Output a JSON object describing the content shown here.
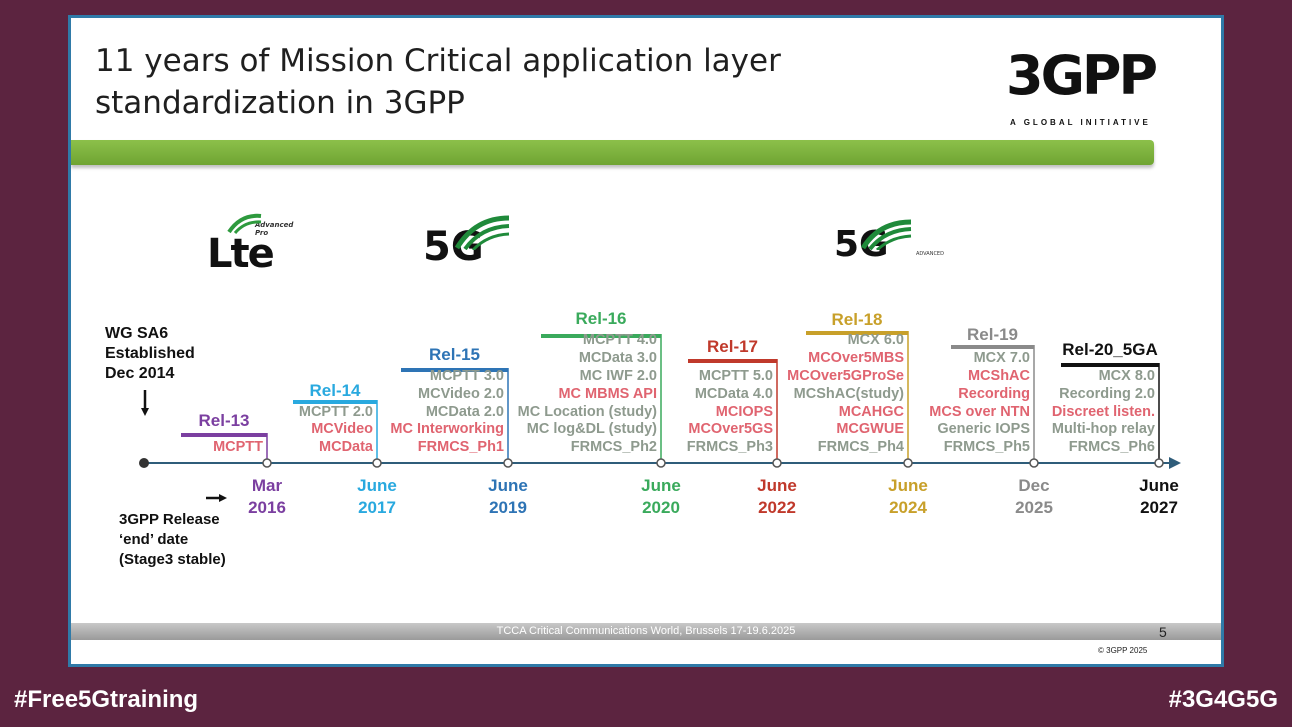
{
  "slide": {
    "title_line1": "11 years of Mission Critical application layer",
    "title_line2": "standardization in 3GPP",
    "logo_mark": "3GPP",
    "logo_tag": "A GLOBAL INITIATIVE",
    "lte_logo": "Lte",
    "lte_sub": "Advanced Pro",
    "g5_logo": "5G",
    "g5a_logo": "5G",
    "g5a_sub": "ADVANCED",
    "sa6_line1": "WG SA6",
    "sa6_line2": "Established",
    "sa6_line3": "Dec 2014",
    "note_line1": "3GPP Release",
    "note_line2": "‘end’ date",
    "note_line3": "(Stage3 stable)",
    "footer": "TCCA Critical Communications World, Brussels 17-19.6.2025",
    "page_number": "5",
    "copyright": "© 3GPP 2025"
  },
  "colors": {
    "rel13": "#7b3fa0",
    "rel14": "#29a9df",
    "rel15": "#2e74b5",
    "rel16": "#3aaa5c",
    "rel17": "#c0392b",
    "rel18": "#c8a02a",
    "rel19": "#8a8a8a",
    "rel20": "#111111",
    "existing_item": "#8e9a8e",
    "new_item": "#e06470"
  },
  "releases": [
    {
      "name": "Rel-13",
      "date_line1": "Mar",
      "date_line2": "2016",
      "items": [
        {
          "text": "MCPTT",
          "kind": "new"
        }
      ]
    },
    {
      "name": "Rel-14",
      "date_line1": "June",
      "date_line2": "2017",
      "items": [
        {
          "text": "MCPTT 2.0",
          "kind": "existing"
        },
        {
          "text": "MCVideo",
          "kind": "new"
        },
        {
          "text": "MCData",
          "kind": "new"
        }
      ]
    },
    {
      "name": "Rel-15",
      "date_line1": "June",
      "date_line2": "2019",
      "items": [
        {
          "text": "MCPTT 3.0",
          "kind": "existing"
        },
        {
          "text": "MCVideo 2.0",
          "kind": "existing"
        },
        {
          "text": "MCData 2.0",
          "kind": "existing"
        },
        {
          "text": "MC Interworking",
          "kind": "new"
        },
        {
          "text": "FRMCS_Ph1",
          "kind": "new"
        }
      ]
    },
    {
      "name": "Rel-16",
      "date_line1": "June",
      "date_line2": "2020",
      "items": [
        {
          "text": "MCPTT 4.0",
          "kind": "existing"
        },
        {
          "text": "MCData 3.0",
          "kind": "existing"
        },
        {
          "text": "MC IWF 2.0",
          "kind": "existing"
        },
        {
          "text": "MC MBMS API",
          "kind": "new"
        },
        {
          "text": "MC Location (study)",
          "kind": "existing"
        },
        {
          "text": "MC log&DL (study)",
          "kind": "existing"
        },
        {
          "text": "FRMCS_Ph2",
          "kind": "existing"
        }
      ]
    },
    {
      "name": "Rel-17",
      "date_line1": "June",
      "date_line2": "2022",
      "items": [
        {
          "text": "MCPTT 5.0",
          "kind": "existing"
        },
        {
          "text": "MCData 4.0",
          "kind": "existing"
        },
        {
          "text": "MCIOPS",
          "kind": "new"
        },
        {
          "text": "MCOver5GS",
          "kind": "new"
        },
        {
          "text": "FRMCS_Ph3",
          "kind": "existing"
        }
      ]
    },
    {
      "name": "Rel-18",
      "date_line1": "June",
      "date_line2": "2024",
      "items": [
        {
          "text": "MCX 6.0",
          "kind": "existing"
        },
        {
          "text": "MCOver5MBS",
          "kind": "new"
        },
        {
          "text": "MCOver5GProSe",
          "kind": "new"
        },
        {
          "text": "MCShAC(study)",
          "kind": "existing"
        },
        {
          "text": "MCAHGC",
          "kind": "new"
        },
        {
          "text": "MCGWUE",
          "kind": "new"
        },
        {
          "text": "FRMCS_Ph4",
          "kind": "existing"
        }
      ]
    },
    {
      "name": "Rel-19",
      "date_line1": "Dec",
      "date_line2": "2025",
      "items": [
        {
          "text": "MCX 7.0",
          "kind": "existing"
        },
        {
          "text": "MCShAC",
          "kind": "new"
        },
        {
          "text": "Recording",
          "kind": "new"
        },
        {
          "text": "MCS over NTN",
          "kind": "new"
        },
        {
          "text": "Generic IOPS",
          "kind": "existing"
        },
        {
          "text": "FRMCS_Ph5",
          "kind": "existing"
        }
      ]
    },
    {
      "name": "Rel-20_5GA",
      "date_line1": "June",
      "date_line2": "2027",
      "items": [
        {
          "text": "MCX 8.0",
          "kind": "existing"
        },
        {
          "text": "Recording 2.0",
          "kind": "existing"
        },
        {
          "text": "Discreet listen.",
          "kind": "new"
        },
        {
          "text": "Multi-hop relay",
          "kind": "existing"
        },
        {
          "text": "FRMCS_Ph6",
          "kind": "existing"
        }
      ]
    }
  ],
  "hashtags": {
    "left": "#Free5Gtraining",
    "right": "#3G4G5G"
  }
}
